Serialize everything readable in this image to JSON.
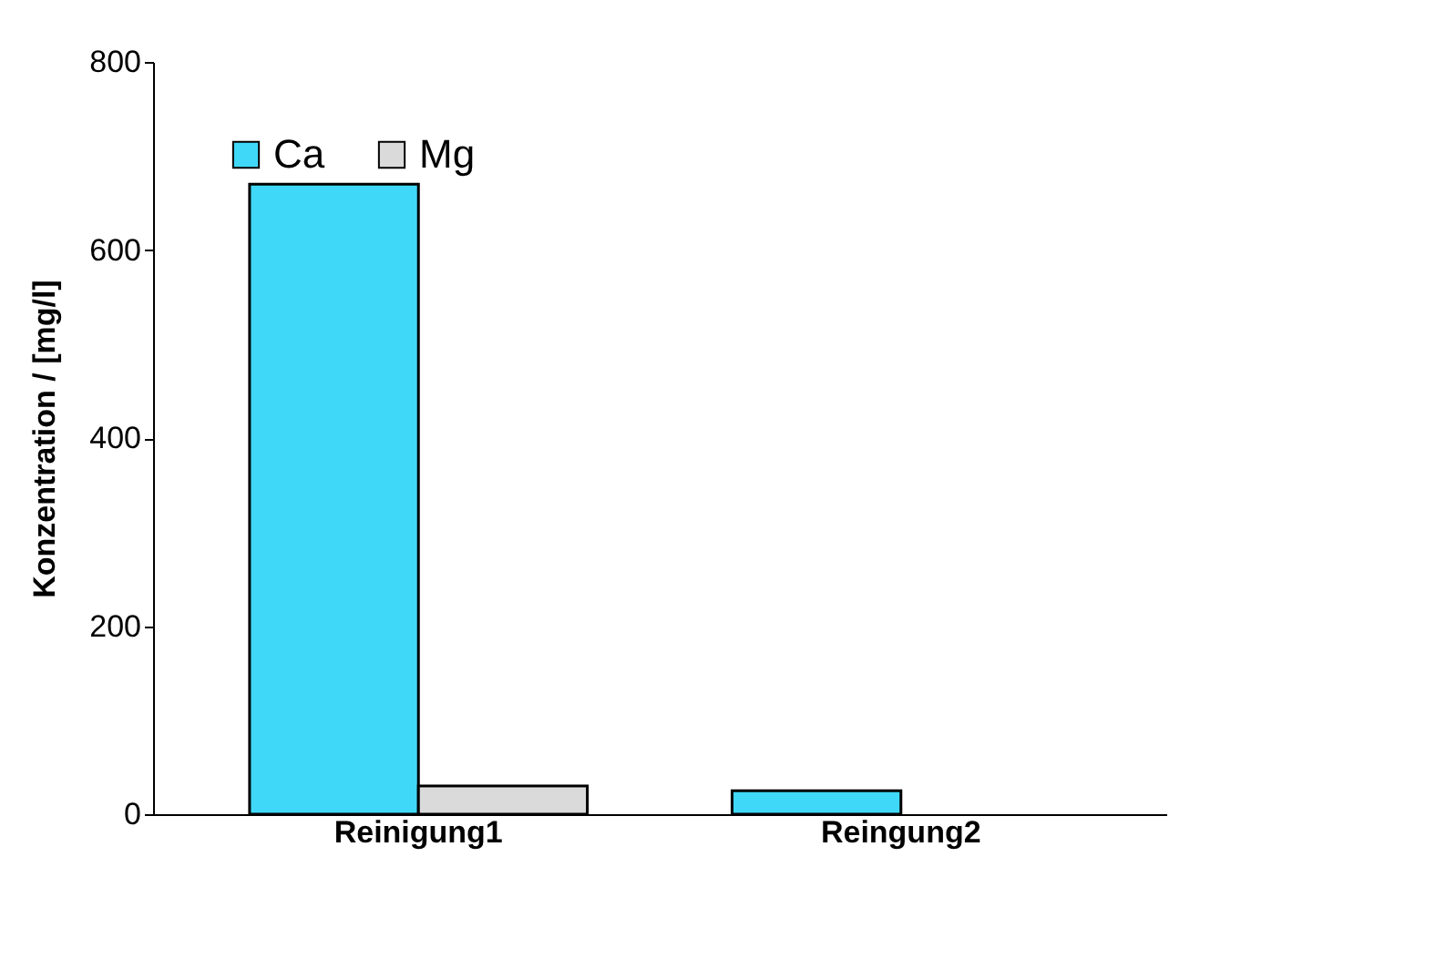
{
  "chart_data": {
    "type": "bar",
    "ylabel": "Konzentration / [mg/l]",
    "categories": [
      "Reinigung1",
      "Reingung2"
    ],
    "series": [
      {
        "name": "Ca",
        "color": "#40d8f8",
        "values": [
          670,
          25
        ]
      },
      {
        "name": "Mg",
        "color": "#dadada",
        "values": [
          30,
          null
        ]
      }
    ],
    "ylim": [
      0,
      800
    ],
    "yticks": [
      0,
      200,
      400,
      600,
      800
    ],
    "grid": false,
    "legend": "top left"
  }
}
